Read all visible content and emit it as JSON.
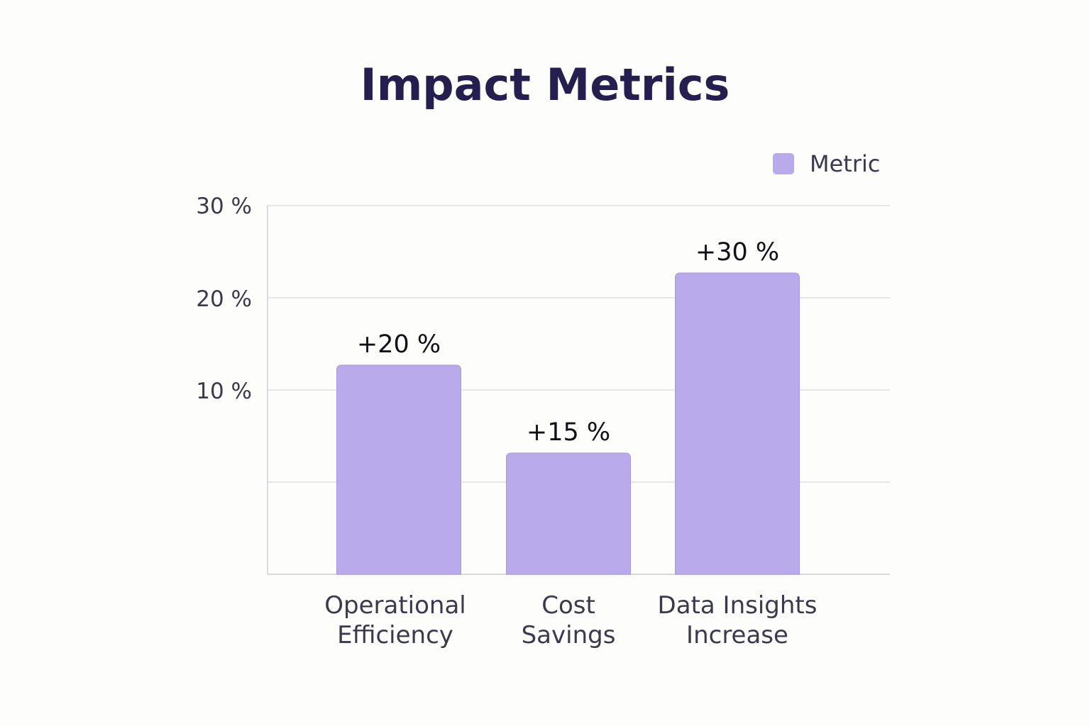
{
  "chart_data": {
    "type": "bar",
    "title": "Impact Metrics",
    "categories": [
      "Operational Efficiency",
      "Cost Savings",
      "Data Insights Increase"
    ],
    "category_lines": [
      [
        "Operational",
        "Efficiency"
      ],
      [
        "Cost",
        "Savings"
      ],
      [
        "Data Insights",
        "Increase"
      ]
    ],
    "series": [
      {
        "name": "Metric",
        "values": [
          20,
          15,
          30
        ],
        "data_labels": [
          "+20 %",
          "+15 %",
          "+30 %"
        ],
        "color": "#b9aaeb"
      }
    ],
    "y_ticks": [
      {
        "value": 10,
        "label": "10 %"
      },
      {
        "value": 20,
        "label": "20 %"
      },
      {
        "value": 30,
        "label": "30 %"
      }
    ],
    "ylim": [
      0,
      30
    ],
    "xlabel": "",
    "ylabel": "",
    "grid": true,
    "legend_position": "top-right",
    "colors": {
      "bar": "#b9aaeb",
      "bar_stroke": "#a897e2",
      "grid": "#e6e6ea",
      "axis": "#d8d8de",
      "title": "#241f4f"
    }
  }
}
